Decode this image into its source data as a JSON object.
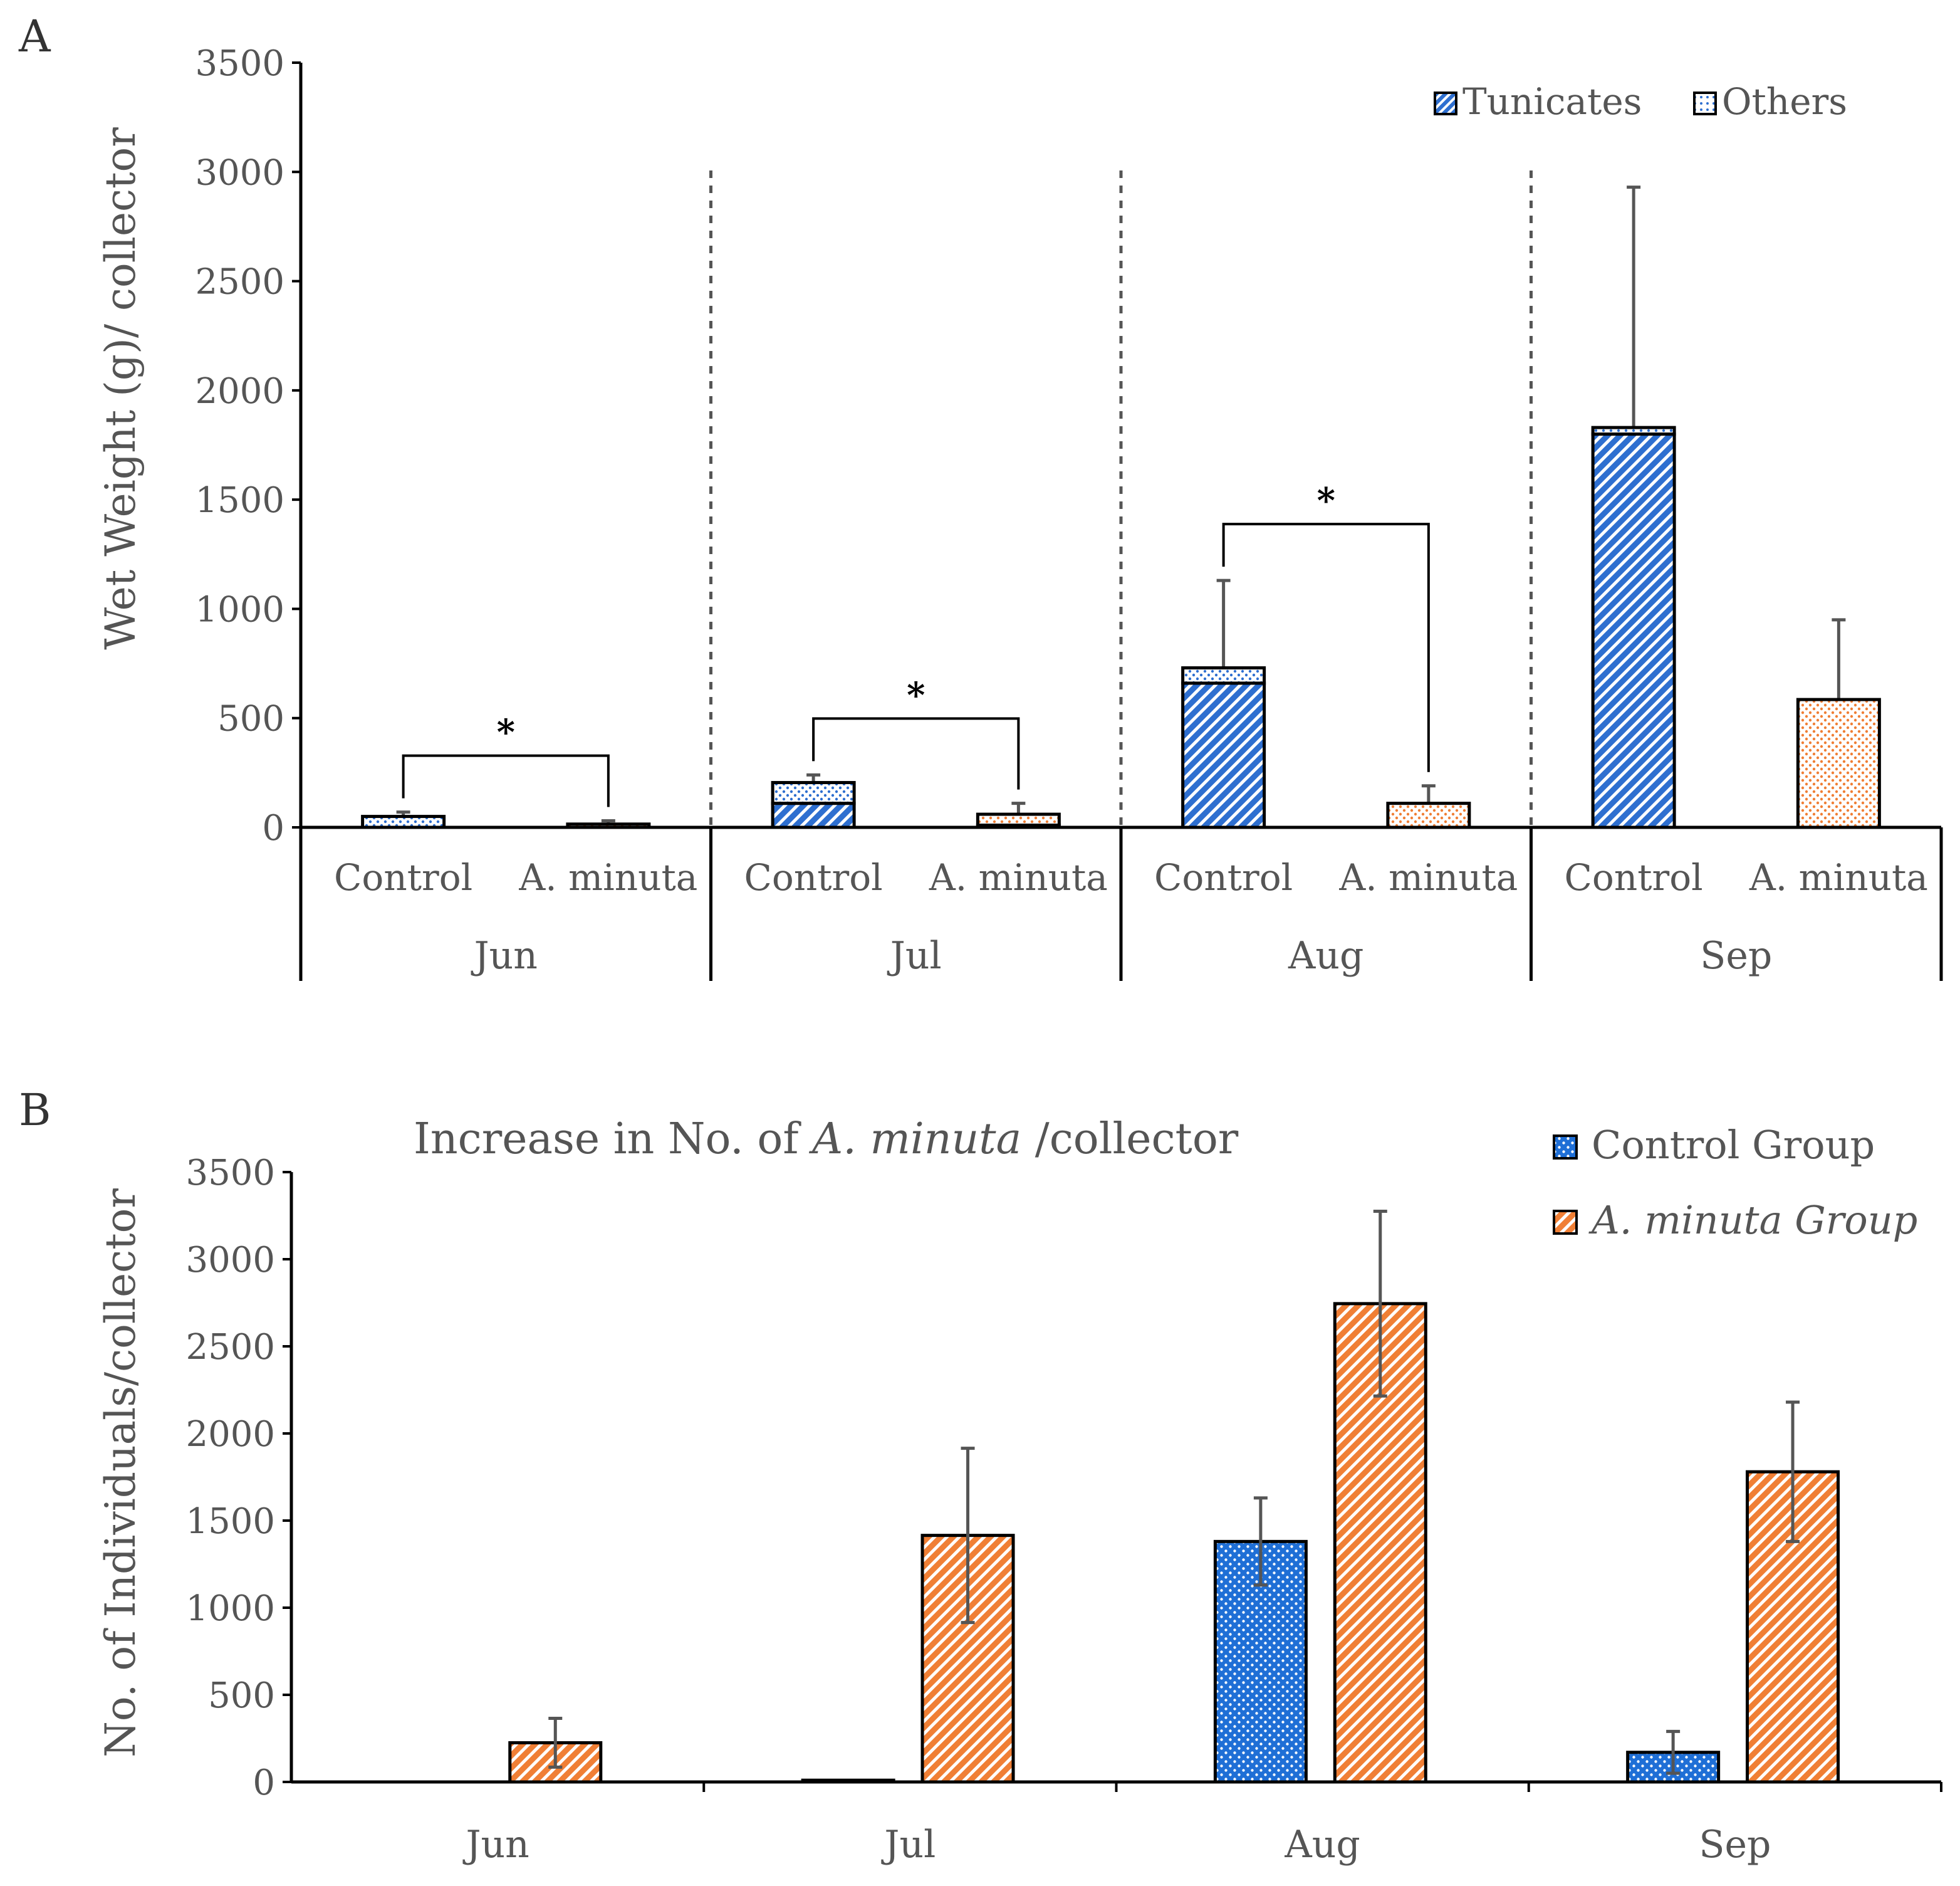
{
  "chart_data": [
    {
      "panel_label": "A",
      "type": "bar",
      "stacked": true,
      "title": "",
      "ylabel": "Wet Weight (g)/ collector",
      "xlabel": "",
      "ylim": [
        0,
        3500
      ],
      "yticks": [
        "0",
        "500",
        "1000",
        "1500",
        "2000",
        "2500",
        "3000",
        "3500"
      ],
      "months": [
        "Jun",
        "Jul",
        "Aug",
        "Sep"
      ],
      "treatments": [
        "Control",
        "A. minuta"
      ],
      "legend_position": "top-right",
      "series": [
        {
          "name": "Tunicates",
          "pattern": "diagonal-stripes",
          "values": [
            [
              0,
              0
            ],
            [
              110,
              10
            ],
            [
              660,
              0
            ],
            [
              1800,
              0
            ]
          ]
        },
        {
          "name": "Others",
          "pattern": "dots",
          "values": [
            [
              50,
              15
            ],
            [
              95,
              50
            ],
            [
              70,
              110
            ],
            [
              30,
              585
            ]
          ]
        }
      ],
      "error_bars_upper": [
        [
          70,
          30
        ],
        [
          240,
          110
        ],
        [
          1130,
          190
        ],
        [
          2930,
          950
        ]
      ],
      "group_colors": {
        "Control": "#2e6fd0",
        "A. minuta": "#f07f35"
      },
      "significance": [
        {
          "month": "Jun",
          "label": "*"
        },
        {
          "month": "Jul",
          "label": "*"
        },
        {
          "month": "Aug",
          "label": "*"
        }
      ]
    },
    {
      "panel_label": "B",
      "type": "bar",
      "title_prefix": "Increase in No. of ",
      "title_italic": "A. minuta",
      "title_suffix": " /collector",
      "ylabel": "No. of Individuals/collector",
      "xlabel": "",
      "ylim": [
        0,
        3500
      ],
      "yticks": [
        "0",
        "500",
        "1000",
        "1500",
        "2000",
        "2500",
        "3000",
        "3500"
      ],
      "categories": [
        "Jun",
        "Jul",
        "Aug",
        "Sep"
      ],
      "legend_position": "top-right",
      "series": [
        {
          "name": "Control Group",
          "italic": false,
          "color": "#1f6fd6",
          "pattern": "dots",
          "values": [
            0,
            10,
            1380,
            170
          ],
          "error": [
            0,
            0,
            250,
            120
          ]
        },
        {
          "name": "A. minuta Group",
          "italic": true,
          "color": "#f07f35",
          "pattern": "diagonal-stripes",
          "values": [
            225,
            1415,
            2745,
            1780
          ],
          "error": [
            140,
            500,
            530,
            400
          ]
        }
      ]
    }
  ]
}
